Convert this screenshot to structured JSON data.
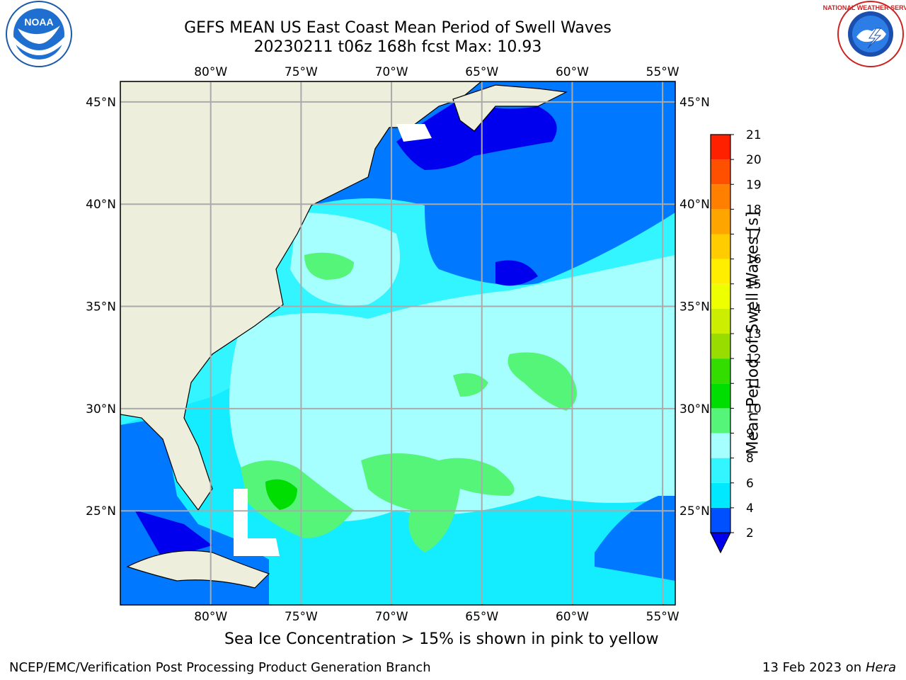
{
  "title_line1": "GEFS MEAN US East Coast Mean Period of Swell Waves",
  "title_line2": "20230211 t06z 168h fcst   Max: 10.93",
  "note": "Sea Ice Concentration > 15% is shown in pink to yellow",
  "footer_left": "NCEP/EMC/Verification Post Processing Product Generation Branch",
  "footer_date": "13 Feb 2023 on",
  "footer_machine": "Hera",
  "logos": {
    "left": "NOAA",
    "right": "NATIONAL WEATHER SERVICE"
  },
  "chart_data": {
    "type": "heatmap",
    "title": "GEFS MEAN US East Coast Mean Period of Swell Waves",
    "subtitle": "20230211 t06z 168h fcst   Max: 10.93",
    "max_value": 10.93,
    "x_ticks": [
      "80°W",
      "75°W",
      "70°W",
      "65°W",
      "60°W",
      "55°W"
    ],
    "x_tick_values": [
      -80,
      -75,
      -70,
      -65,
      -60,
      -55
    ],
    "y_ticks": [
      "45°N",
      "40°N",
      "35°N",
      "30°N",
      "25°N"
    ],
    "y_tick_values": [
      45,
      40,
      35,
      30,
      25
    ],
    "xlim": [
      -85,
      -54.3
    ],
    "ylim": [
      20.4,
      46
    ],
    "grid": true,
    "colorbar": {
      "label": "Mean Period of Swell Waves [s]",
      "ticks": [
        2,
        4,
        6,
        8,
        9,
        10,
        11,
        12,
        13,
        14,
        15,
        16,
        17,
        18,
        19,
        20,
        21
      ],
      "colors": [
        "#0050ff",
        "#00e8ff",
        "#33f5ff",
        "#a6ffff",
        "#55f57a",
        "#00dd00",
        "#33dd00",
        "#99dd00",
        "#ccee00",
        "#eeff00",
        "#ffee00",
        "#ffcc00",
        "#ffa500",
        "#ff8000",
        "#ff5000",
        "#ff2000"
      ],
      "extend_min_color": "#0000ee"
    },
    "regions_description_colors": {
      "land": "#eeeedd",
      "period_2_4": "#0078ff",
      "period_lt2": "#0000ee",
      "period_4_6": "#00e8ff",
      "period_6_8": "#33f5ff",
      "period_8_9": "#a6ffff",
      "period_9_10": "#55f57a",
      "period_10_11": "#00dd00"
    }
  }
}
